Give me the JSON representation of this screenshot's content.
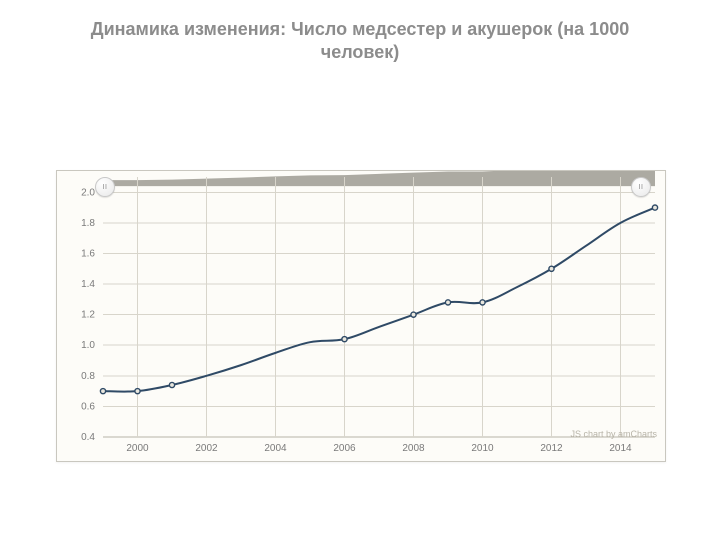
{
  "title": "Динамика изменения: Число медсестер и акушерок (на 1000 человек)",
  "footer_credit": "JS chart by amCharts",
  "chart": {
    "type": "line",
    "background_color": "#fdfcf8",
    "border_color": "#c9c7bf",
    "grid_color": "#d8d5cb",
    "axis_text_color": "#7a7a7a",
    "series_color": "#2f4a66",
    "marker_fill": "#e9e7de",
    "marker_stroke": "#2f4a66",
    "marker_radius": 2.6,
    "line_width": 2,
    "x": {
      "min": 1999,
      "max": 2015,
      "tick_labels": [
        2000,
        2002,
        2004,
        2006,
        2008,
        2010,
        2012,
        2014
      ]
    },
    "y": {
      "min": 0.4,
      "max": 2.1,
      "tick_labels": [
        0.4,
        0.6,
        0.8,
        1.0,
        1.2,
        1.4,
        1.6,
        1.8,
        2.0
      ]
    },
    "banner": {
      "base_y": 2.04,
      "fill": "#9e9b93",
      "x_points": [
        1999,
        2000,
        2001,
        2002,
        2003,
        2004,
        2005,
        2006,
        2007,
        2008,
        2009,
        2010,
        2011,
        2012,
        2013,
        2014,
        2015
      ],
      "values": [
        0.7,
        0.7,
        0.74,
        0.8,
        0.87,
        0.95,
        1.02,
        1.04,
        1.12,
        1.2,
        1.28,
        1.28,
        1.38,
        1.5,
        1.65,
        1.8,
        1.9
      ]
    },
    "data": {
      "x": [
        1999,
        2000,
        2001,
        2002,
        2003,
        2004,
        2005,
        2006,
        2007,
        2008,
        2009,
        2010,
        2011,
        2012,
        2013,
        2014,
        2015
      ],
      "y": [
        0.7,
        0.7,
        0.74,
        0.8,
        0.87,
        0.95,
        1.02,
        1.04,
        1.12,
        1.2,
        1.28,
        1.28,
        1.38,
        1.5,
        1.65,
        1.8,
        1.9
      ]
    },
    "marker_x": [
      1999,
      2000,
      2001,
      2006,
      2008,
      2009,
      2010,
      2012,
      2015
    ],
    "axis_label_fontsize": 10
  }
}
